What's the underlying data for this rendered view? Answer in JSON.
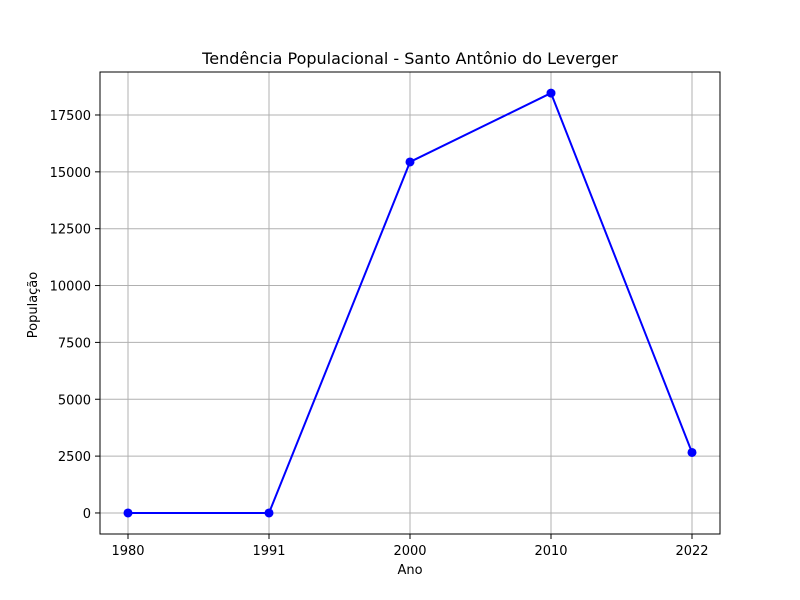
{
  "chart_data": {
    "type": "line",
    "title": "Tendência Populacional - Santo Antônio do Leverger",
    "xlabel": "Ano",
    "ylabel": "População",
    "categories": [
      "1980",
      "1991",
      "2000",
      "2010",
      "2022"
    ],
    "series": [
      {
        "values": [
          0,
          0,
          15435,
          18463,
          2660
        ]
      }
    ],
    "y_ticks": [
      0,
      2500,
      5000,
      7500,
      10000,
      12500,
      15000,
      17500
    ],
    "ylim": [
      -925,
      19390
    ],
    "grid": true,
    "color": "#0000ff",
    "marker": "circle"
  }
}
